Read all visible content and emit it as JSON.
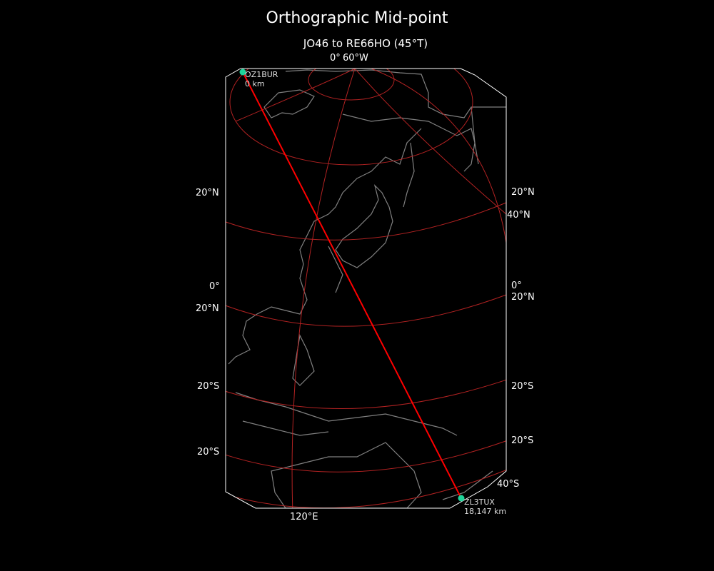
{
  "figure": {
    "title": "Orthographic Mid-point",
    "subtitle": "JO46 to RE66HO (45°T)"
  },
  "projection": "orthographic",
  "colors": {
    "background": "#000000",
    "graticule": "#b22222",
    "path": "#ff0000",
    "coastline": "#808080",
    "station": "#1fd39a",
    "boundary": "#ffffff"
  },
  "gridline_labels": {
    "top": [
      "0°",
      "60°W"
    ],
    "left": [
      "20°N",
      "0°",
      "20°N",
      "20°S",
      "20°S"
    ],
    "right": [
      "20°N",
      "40°N",
      "0°",
      "20°N",
      "20°S",
      "20°S",
      "40°S"
    ],
    "bottom": [
      "120°E"
    ]
  },
  "stations": [
    {
      "call": "OZ1BUR",
      "distance": "0 km"
    },
    {
      "call": "ZL3TUX",
      "distance": "18,147 km"
    }
  ]
}
